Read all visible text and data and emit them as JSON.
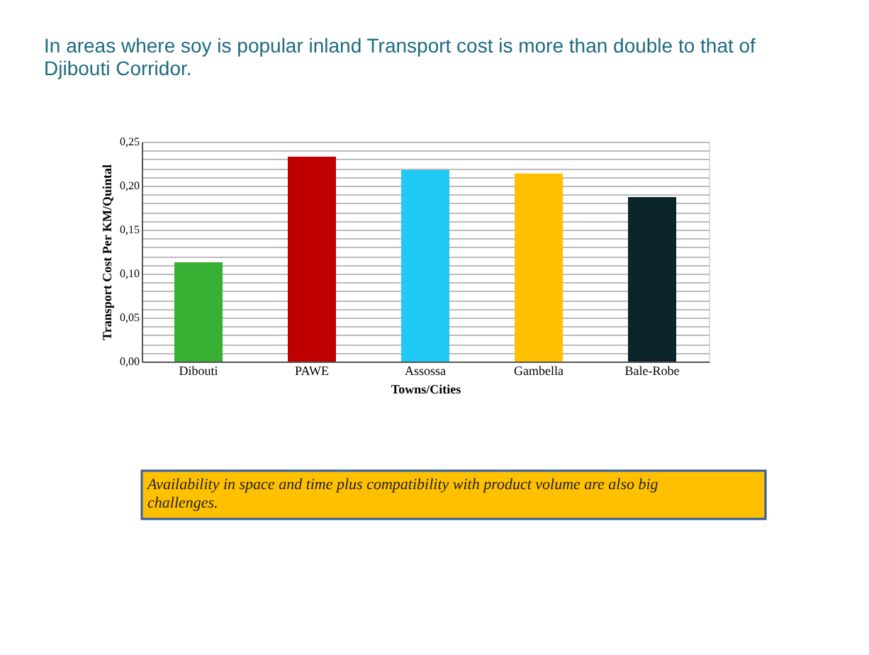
{
  "chart_data": {
    "type": "bar",
    "title": [
      "In areas where soy is popular inland Transport cost is more than double to that of",
      "Djibouti Corridor."
    ],
    "xlabel": "Towns/Cities",
    "ylabel": "Transport Cost Per KM/Quintal",
    "categories": [
      "Dibouti",
      "PAWE",
      "Assossa",
      "Gambella",
      "Bale-Robe"
    ],
    "values": [
      0.113,
      0.233,
      0.218,
      0.214,
      0.187
    ],
    "colors": [
      "#37b034",
      "#c00000",
      "#20c8f4",
      "#ffc000",
      "#0a2429"
    ],
    "ylim": [
      0,
      0.25
    ],
    "yticks": [
      {
        "value": 0,
        "label": "0,00"
      },
      {
        "value": 0.01,
        "label": null
      },
      {
        "value": 0.02,
        "label": null
      },
      {
        "value": 0.03,
        "label": null
      },
      {
        "value": 0.04,
        "label": null
      },
      {
        "value": 0.05,
        "label": "0,05"
      },
      {
        "value": 0.06,
        "label": null
      },
      {
        "value": 0.07,
        "label": null
      },
      {
        "value": 0.08,
        "label": null
      },
      {
        "value": 0.09,
        "label": null
      },
      {
        "value": 0.1,
        "label": "0,10"
      },
      {
        "value": 0.11,
        "label": null
      },
      {
        "value": 0.12,
        "label": null
      },
      {
        "value": 0.13,
        "label": null
      },
      {
        "value": 0.14,
        "label": null
      },
      {
        "value": 0.15,
        "label": "0,15"
      },
      {
        "value": 0.16,
        "label": null
      },
      {
        "value": 0.17,
        "label": null
      },
      {
        "value": 0.18,
        "label": null
      },
      {
        "value": 0.19,
        "label": null
      },
      {
        "value": 0.2,
        "label": "0,20"
      },
      {
        "value": 0.21,
        "label": null
      },
      {
        "value": 0.22,
        "label": null
      },
      {
        "value": 0.23,
        "label": null
      },
      {
        "value": 0.24,
        "label": null
      },
      {
        "value": 0.25,
        "label": "0,25"
      }
    ],
    "grid": "y",
    "annotations": [
      [
        "Availability in space and time plus compatibility with product volume are also big",
        "challenges."
      ]
    ]
  }
}
